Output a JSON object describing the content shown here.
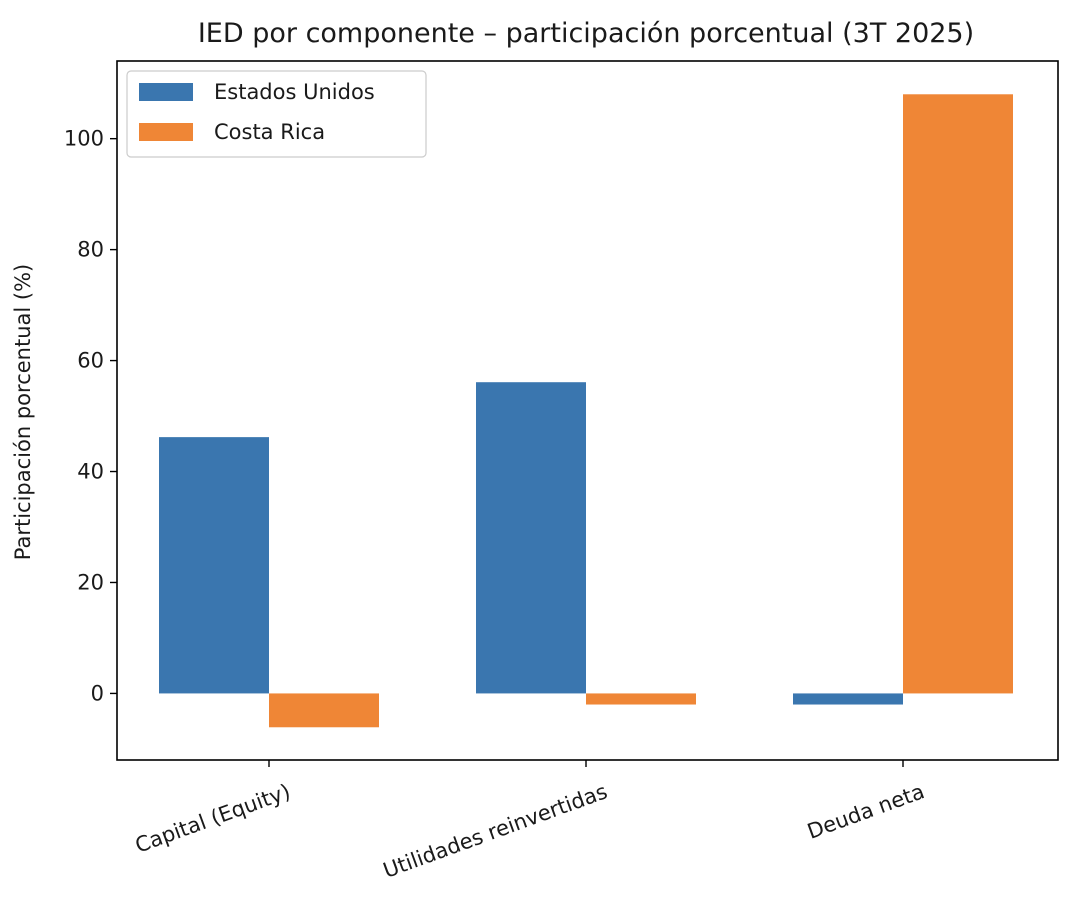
{
  "chart_data": {
    "type": "bar",
    "title": "IED por componente – participación porcentual (3T 2025)",
    "xlabel": "",
    "ylabel": "Participación porcentual (%)",
    "categories": [
      "Capital (Equity)",
      "Utilidades reinvertidas",
      "Deuda neta"
    ],
    "series": [
      {
        "name": "Estados Unidos",
        "color": "#3a76af",
        "values": [
          46.2,
          56.1,
          -2.0
        ]
      },
      {
        "name": "Costa Rica",
        "color": "#ef8636",
        "values": [
          -6.1,
          -2.0,
          108.0
        ]
      }
    ],
    "ylim": [
      -12,
      114
    ],
    "yticks": [
      0,
      20,
      40,
      60,
      80,
      100
    ],
    "grid": false,
    "legend_position": "top-left"
  }
}
